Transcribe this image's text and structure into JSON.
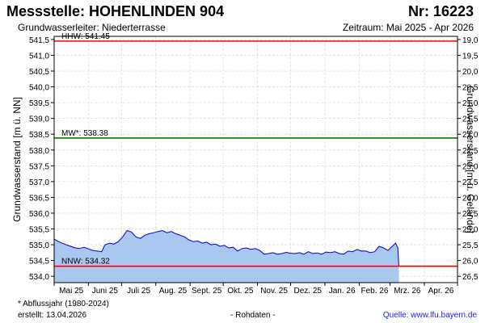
{
  "header": {
    "title": "Messstelle: HOHENLINDEN 904",
    "number": "Nr: 16223",
    "aquifer": "Grundwasserleiter:   Niederterrasse",
    "period": "Zeitraum: Mai 2025 - Apr 2026"
  },
  "footer": {
    "footnote": "* Abflussjahr (1980-2024)",
    "created": "erstellt:  13.04.2026",
    "raw": "- Rohdaten -",
    "source": "Quelle:  www.lfu.bayern.de"
  },
  "colors": {
    "hhw": "#ff0000",
    "mw": "#008000",
    "nnw": "#ff0000",
    "area_fill": "#a8c8f0",
    "series_line": "#0000cc",
    "grid": "#d4d4d4"
  },
  "chart_data": {
    "type": "area",
    "ylabel": "Grundwasserstand [m ü. NN]",
    "ylabel_right": "Grundwasserstand [m u. Gelände]",
    "ylim": [
      533.8,
      541.6
    ],
    "yticks": [
      "541,5",
      "541,0",
      "540,5",
      "540,0",
      "539,5",
      "539,0",
      "538,5",
      "538,0",
      "537,5",
      "537,0",
      "536,5",
      "536,0",
      "535,5",
      "535,0",
      "534,5",
      "534,0"
    ],
    "yticks_right": [
      "19,0",
      "19,5",
      "20,0",
      "20,5",
      "21,0",
      "21,5",
      "22,0",
      "22,5",
      "23,0",
      "23,5",
      "24,0",
      "24,5",
      "25,0",
      "25,5",
      "26,0",
      "26,5"
    ],
    "right_axis_reference": 560.5,
    "xlim": [
      "2025-05-01",
      "2026-05-01"
    ],
    "month_labels": [
      "Mai 25",
      "Juni 25",
      "Juli 25",
      "Aug. 25",
      "Sept. 25",
      "Okt. 25",
      "Nov. 25",
      "Dez. 25",
      "Jan. 26",
      "Feb. 26",
      "Mrz. 26",
      "Apr. 26"
    ],
    "month_starts": [
      "2025-05-01",
      "2025-06-01",
      "2025-07-01",
      "2025-08-01",
      "2025-09-01",
      "2025-10-01",
      "2025-11-01",
      "2025-12-01",
      "2026-01-01",
      "2026-02-01",
      "2026-03-01",
      "2026-04-01",
      "2026-05-01"
    ],
    "reference_lines": [
      {
        "label": "HHW: 541.45",
        "value": 541.45
      },
      {
        "label": "MW*: 538.38",
        "value": 538.38
      },
      {
        "label": "NNW: 534.32",
        "value": 534.32
      }
    ],
    "series": [
      {
        "x": [
          "2025-05-01",
          "2025-05-04",
          "2025-05-08",
          "2025-05-12",
          "2025-05-16",
          "2025-05-20",
          "2025-05-24",
          "2025-05-28",
          "2025-06-01",
          "2025-06-05",
          "2025-06-09",
          "2025-06-13",
          "2025-06-16",
          "2025-06-20",
          "2025-06-24",
          "2025-06-28",
          "2025-07-02",
          "2025-07-06",
          "2025-07-10",
          "2025-07-14",
          "2025-07-18",
          "2025-07-22",
          "2025-07-26",
          "2025-07-30",
          "2025-08-03",
          "2025-08-07",
          "2025-08-11",
          "2025-08-15",
          "2025-08-19",
          "2025-08-23",
          "2025-08-27",
          "2025-08-31",
          "2025-09-04",
          "2025-09-08",
          "2025-09-12",
          "2025-09-16",
          "2025-09-20",
          "2025-09-24",
          "2025-09-28",
          "2025-10-02",
          "2025-10-06",
          "2025-10-10",
          "2025-10-14",
          "2025-10-18",
          "2025-10-22",
          "2025-10-26",
          "2025-10-30",
          "2025-11-03",
          "2025-11-07",
          "2025-11-11",
          "2025-11-15",
          "2025-11-19",
          "2025-11-23",
          "2025-11-27",
          "2025-12-01",
          "2025-12-05",
          "2025-12-09",
          "2025-12-13",
          "2025-12-17",
          "2025-12-21",
          "2025-12-25",
          "2025-12-29",
          "2026-01-02",
          "2026-01-06",
          "2026-01-10",
          "2026-01-14",
          "2026-01-18",
          "2026-01-22",
          "2026-01-26",
          "2026-01-30",
          "2026-02-03",
          "2026-02-07",
          "2026-02-11",
          "2026-02-15",
          "2026-02-19",
          "2026-02-23",
          "2026-02-27",
          "2026-03-03",
          "2026-03-06",
          "2026-03-08",
          "2026-03-09"
        ],
        "values": [
          535.18,
          535.12,
          535.05,
          535.0,
          534.95,
          534.9,
          534.88,
          534.92,
          534.87,
          534.82,
          534.8,
          534.78,
          535.0,
          535.05,
          535.02,
          535.1,
          535.25,
          535.45,
          535.4,
          535.25,
          535.2,
          535.3,
          535.35,
          535.38,
          535.42,
          535.45,
          535.38,
          535.42,
          535.35,
          535.3,
          535.25,
          535.15,
          535.1,
          535.12,
          535.05,
          535.08,
          535.0,
          535.02,
          534.95,
          534.98,
          534.9,
          534.92,
          534.8,
          534.88,
          534.9,
          534.85,
          534.88,
          534.82,
          534.7,
          534.72,
          534.75,
          534.7,
          534.72,
          534.76,
          534.73,
          534.72,
          534.75,
          534.7,
          534.78,
          534.72,
          534.74,
          534.7,
          534.77,
          534.75,
          534.78,
          534.72,
          534.7,
          534.8,
          534.78,
          534.85,
          534.8,
          534.8,
          534.75,
          534.78,
          534.95,
          534.9,
          534.82,
          534.95,
          535.05,
          534.9,
          534.3
        ]
      }
    ]
  }
}
